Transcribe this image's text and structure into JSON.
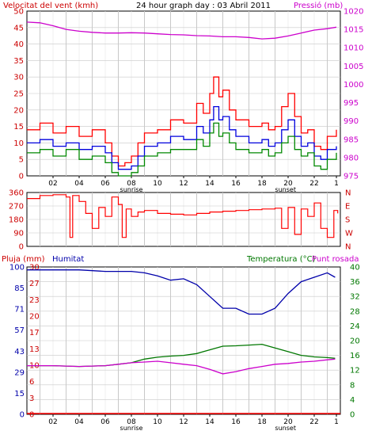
{
  "colors": {
    "wind": "#ff0000",
    "pressure": "#cc00cc",
    "humidity": "#0000aa",
    "temperature": "#007700",
    "dewpoint": "#cc00cc",
    "rain": "#ff0000",
    "gust": "#ff0000",
    "avg_wind": "#0000dd",
    "min_wind": "#008800",
    "grid": "#c8c8c8",
    "frame": "#000000"
  },
  "chart_data": [
    {
      "type": "line",
      "title": "24 hour graph day : 03 Abril 2011",
      "ylabel_left": "Velocitat del vent (kmh)",
      "ylabel_right": "Pressió (mb)",
      "ylim_left": [
        0,
        50
      ],
      "yticks_left": [
        "0",
        "5",
        "10",
        "15",
        "20",
        "25",
        "30",
        "35",
        "40",
        "45",
        "50"
      ],
      "ylim_right": [
        975,
        1020
      ],
      "yticks_right": [
        "975",
        "980",
        "985",
        "990",
        "995",
        "1000",
        "1005",
        "1010",
        "1015",
        "1020"
      ],
      "xlim": [
        0,
        24
      ],
      "x_ticks": [
        "02",
        "04",
        "06",
        "08",
        "10",
        "12",
        "14",
        "16",
        "18",
        "20",
        "22",
        "1"
      ],
      "sunrise": {
        "label": "sunrise",
        "x": 8
      },
      "sunset": {
        "label": "sunset",
        "x": 19.8
      },
      "grid": true,
      "series": [
        {
          "x": [
            0,
            1,
            2,
            3,
            4,
            5,
            6,
            6.5,
            7,
            7.5,
            8,
            8.5,
            9,
            10,
            11,
            12,
            13,
            13.5,
            14,
            14.3,
            14.7,
            15,
            15.5,
            16,
            17,
            18,
            18.5,
            19,
            19.5,
            20,
            20.5,
            21,
            21.5,
            22,
            22.5,
            23,
            23.7
          ],
          "values": [
            14,
            16,
            13,
            15,
            12,
            14,
            10,
            6,
            3,
            4,
            6,
            10,
            13,
            14,
            17,
            16,
            22,
            19,
            25,
            30,
            24,
            26,
            20,
            17,
            15,
            16,
            14,
            15,
            21,
            25,
            18,
            13,
            14,
            9,
            8,
            12,
            14
          ]
        },
        {
          "x": [
            0,
            1,
            2,
            3,
            4,
            5,
            6,
            6.5,
            7,
            7.5,
            8,
            8.5,
            9,
            10,
            11,
            12,
            13,
            13.5,
            14,
            14.3,
            14.7,
            15,
            15.5,
            16,
            17,
            18,
            18.5,
            19,
            19.5,
            20,
            20.5,
            21,
            21.5,
            22,
            22.5,
            23,
            23.7
          ],
          "values": [
            10,
            11,
            9,
            10,
            8,
            9,
            7,
            4,
            2,
            2,
            3,
            6,
            9,
            10,
            12,
            11,
            15,
            13,
            17,
            21,
            17,
            18,
            14,
            12,
            10,
            11,
            9,
            10,
            14,
            17,
            12,
            9,
            10,
            6,
            5,
            8,
            9
          ]
        },
        {
          "x": [
            0,
            1,
            2,
            3,
            4,
            5,
            6,
            6.5,
            7,
            7.5,
            8,
            8.5,
            9,
            10,
            11,
            12,
            13,
            13.5,
            14,
            14.3,
            14.7,
            15,
            15.5,
            16,
            17,
            18,
            18.5,
            19,
            19.5,
            20,
            20.5,
            21,
            21.5,
            22,
            22.5,
            23,
            23.7
          ],
          "values": [
            7,
            8,
            6,
            8,
            5,
            6,
            4,
            1,
            0,
            0,
            1,
            3,
            6,
            7,
            8,
            8,
            11,
            9,
            13,
            16,
            12,
            13,
            10,
            8,
            7,
            8,
            6,
            7,
            10,
            12,
            8,
            6,
            7,
            3,
            2,
            5,
            7
          ]
        },
        {
          "axis": "right",
          "x": [
            0,
            1,
            2,
            3,
            4,
            5,
            6,
            7,
            8,
            9,
            10,
            11,
            12,
            13,
            14,
            15,
            16,
            17,
            18,
            19,
            20,
            21,
            22,
            23,
            23.7
          ],
          "values": [
            1017,
            1016.8,
            1016,
            1015,
            1014.5,
            1014.2,
            1014,
            1014,
            1014.1,
            1014,
            1013.8,
            1013.6,
            1013.5,
            1013.3,
            1013.2,
            1013,
            1013,
            1012.8,
            1012.4,
            1012.6,
            1013.2,
            1014,
            1014.8,
            1015.2,
            1015.6
          ]
        }
      ]
    },
    {
      "type": "line",
      "ylim_left": [
        0,
        360
      ],
      "yticks_left": [
        "0",
        "90",
        "180",
        "270",
        "360"
      ],
      "ticks_right": [
        "N",
        "W",
        "S",
        "E",
        "N"
      ],
      "xlim": [
        0,
        24
      ],
      "grid": true,
      "series": [
        {
          "x": [
            0,
            1,
            2,
            3,
            3.3,
            3.5,
            4,
            4.5,
            5,
            5.5,
            6,
            6.5,
            7,
            7.3,
            7.6,
            8,
            8.5,
            9,
            10,
            11,
            12,
            13,
            14,
            15,
            16,
            17,
            18,
            19,
            19.5,
            20,
            20.5,
            21,
            21.5,
            22,
            22.5,
            23,
            23.5,
            23.8
          ],
          "values": [
            320,
            340,
            345,
            330,
            60,
            340,
            300,
            220,
            120,
            260,
            200,
            330,
            280,
            60,
            250,
            200,
            230,
            240,
            220,
            215,
            210,
            220,
            230,
            235,
            240,
            245,
            250,
            255,
            120,
            260,
            80,
            250,
            200,
            290,
            120,
            60,
            240,
            220
          ]
        }
      ]
    },
    {
      "type": "line",
      "ylabel_left": "Pluja (mm)",
      "ylabel_left2": "Humitat",
      "ylabel_right": "Temperatura (°C)",
      "ylabel_right2": "Punt rosada",
      "ylim_humidity": [
        0,
        100
      ],
      "yticks_humidity": [
        "0",
        "15",
        "29",
        "43",
        "57",
        "71",
        "85",
        "100"
      ],
      "ylim_rain": [
        0,
        30
      ],
      "yticks_rain": [
        "0",
        "3",
        "6",
        "10",
        "13",
        "17",
        "20",
        "23",
        "27",
        "30"
      ],
      "ylim_temp": [
        0,
        40
      ],
      "yticks_temp": [
        "0",
        "4",
        "8",
        "12",
        "16",
        "20",
        "24",
        "28",
        "32",
        "36",
        "40"
      ],
      "xlim": [
        0,
        24
      ],
      "grid": true,
      "series": [
        {
          "x": [
            0,
            2,
            4,
            6,
            8,
            9,
            10,
            11,
            12,
            13,
            14,
            15,
            16,
            17,
            18,
            19,
            20,
            21,
            22,
            23,
            23.6
          ],
          "values": [
            98,
            98,
            98,
            97,
            97,
            96,
            94,
            91,
            92,
            88,
            80,
            72,
            72,
            68,
            68,
            72,
            82,
            90,
            93,
            96,
            93
          ]
        },
        {
          "x": [
            0,
            2,
            4,
            6,
            7,
            8,
            9,
            10,
            11,
            12,
            13,
            14,
            15,
            16,
            17,
            18,
            19,
            20,
            21,
            22,
            23,
            23.6
          ],
          "values": [
            13.2,
            13.2,
            13.0,
            13.2,
            13.6,
            14,
            15,
            15.5,
            15.8,
            16,
            16.5,
            17.5,
            18.5,
            18.6,
            18.8,
            19,
            18,
            17,
            16,
            15.6,
            15.4,
            15.2
          ]
        },
        {
          "x": [
            0,
            2,
            4,
            6,
            7,
            8,
            9,
            10,
            11,
            12,
            13,
            14,
            15,
            16,
            17,
            18,
            19,
            20,
            21,
            22,
            23,
            23.6
          ],
          "values": [
            13.2,
            13.2,
            13.0,
            13.2,
            13.6,
            14,
            14.2,
            14.4,
            14.0,
            13.6,
            13.2,
            12.2,
            11.0,
            11.6,
            12.4,
            13,
            13.6,
            13.8,
            14.2,
            14.4,
            14.8,
            15
          ]
        },
        {
          "axis": "rain",
          "x": [
            0,
            24
          ],
          "values": [
            0,
            0
          ]
        }
      ]
    }
  ]
}
